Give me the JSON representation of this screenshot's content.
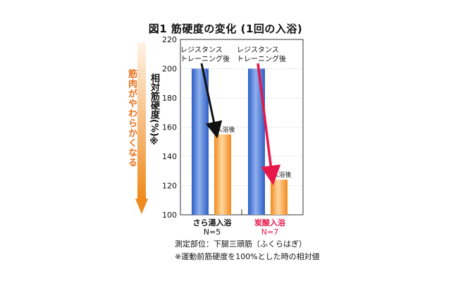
{
  "chart_data": {
    "type": "bar",
    "title": "図1 筋硬度の変化 (1回の入浴)",
    "ylabel": "相対筋硬度(%)※",
    "ylim": [
      100,
      220
    ],
    "yticks": [
      100,
      120,
      140,
      160,
      180,
      200,
      220
    ],
    "categories": [
      {
        "name": "さら湯入浴",
        "n": "N=5",
        "color": "#111111"
      },
      {
        "name": "炭酸入浴",
        "n": "N=7",
        "color": "#e8174a"
      }
    ],
    "series": [
      {
        "name": "レジスタンストレーニング後",
        "values": [
          200,
          200
        ],
        "color": "#4a78d4"
      },
      {
        "name": "入浴後",
        "values": [
          155,
          124
        ],
        "color": "#f3a04a"
      }
    ],
    "bar_annotations": {
      "before": [
        "レジスタンス",
        "トレーニング後"
      ],
      "after": "入浴後"
    },
    "arrows": [
      {
        "color": "#111111"
      },
      {
        "color": "#e8174a"
      }
    ],
    "side_arrow_text": "筋肉がやわらかくなる",
    "notes": [
      "測定部位：下腿三頭筋（ふくらはぎ）",
      "※運動前筋硬度を100%とした時の相対値"
    ]
  }
}
